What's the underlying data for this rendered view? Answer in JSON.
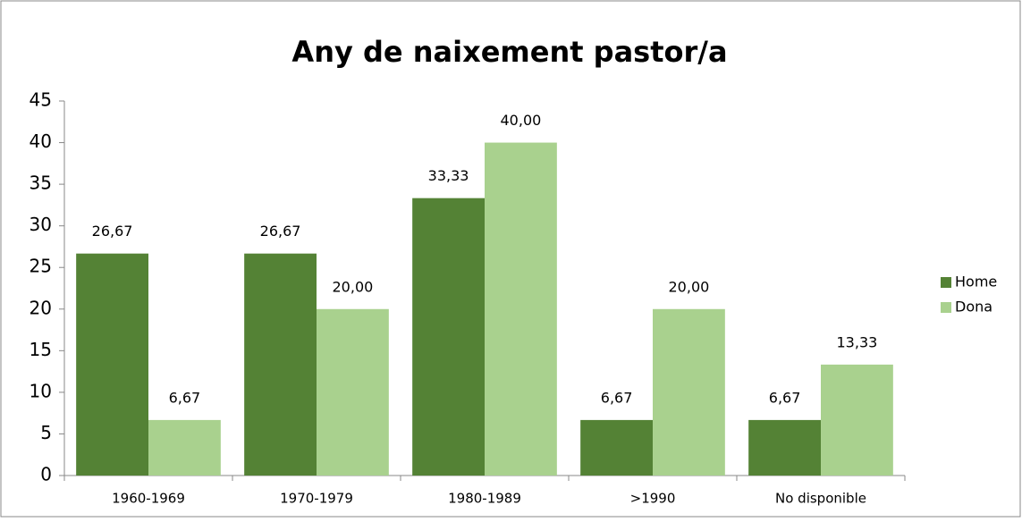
{
  "chart_data": {
    "type": "bar",
    "title": "Any de naixement pastor/a",
    "categories": [
      "1960-1969",
      "1970-1979",
      "1980-1989",
      ">1990",
      "No disponible"
    ],
    "series": [
      {
        "name": "Home",
        "color": "#548235",
        "values": [
          26.67,
          26.67,
          33.33,
          6.67,
          6.67
        ],
        "value_labels": [
          "26,67",
          "26,67",
          "33,33",
          "6,67",
          "6,67"
        ]
      },
      {
        "name": "Dona",
        "color": "#a9d18e",
        "values": [
          6.67,
          20,
          40,
          20,
          13.33
        ],
        "value_labels": [
          "6,67",
          "20,00",
          "40,00",
          "20,00",
          "13,33"
        ]
      }
    ],
    "ylim": [
      0,
      45
    ],
    "yticks": [
      0,
      5,
      10,
      15,
      20,
      25,
      30,
      35,
      40,
      45
    ],
    "legend": "right"
  }
}
